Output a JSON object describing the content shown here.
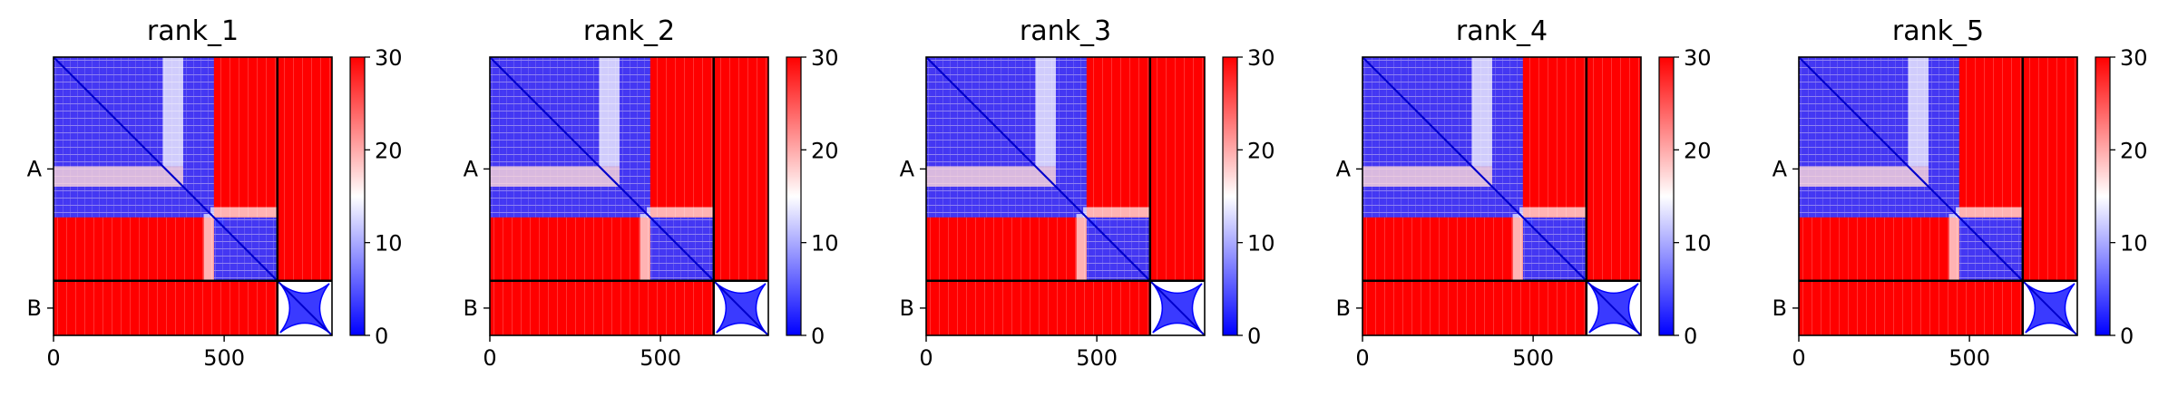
{
  "chart_data": [
    {
      "type": "heatmap",
      "title": "rank_1",
      "xlabel": "",
      "ylabel": "",
      "x_ticks": [
        0,
        500
      ],
      "x_tick_labels": [
        "0",
        "500"
      ],
      "y_ticks": [
        "A",
        "B"
      ],
      "xlim": [
        0,
        816
      ],
      "ylim": [
        816,
        0
      ],
      "chain_boundaries": [
        {
          "chain": "A",
          "start": 0,
          "end": 656
        },
        {
          "chain": "B",
          "start": 656,
          "end": 816
        }
      ],
      "colorbar": {
        "min": 0,
        "max": 30,
        "ticks": [
          "0",
          "10",
          "20",
          "30"
        ],
        "colormap": "bwr"
      },
      "grid": false
    },
    {
      "type": "heatmap",
      "title": "rank_2",
      "xlabel": "",
      "ylabel": "",
      "x_ticks": [
        0,
        500
      ],
      "x_tick_labels": [
        "0",
        "500"
      ],
      "y_ticks": [
        "A",
        "B"
      ],
      "xlim": [
        0,
        816
      ],
      "ylim": [
        816,
        0
      ],
      "chain_boundaries": [
        {
          "chain": "A",
          "start": 0,
          "end": 656
        },
        {
          "chain": "B",
          "start": 656,
          "end": 816
        }
      ],
      "colorbar": {
        "min": 0,
        "max": 30,
        "ticks": [
          "0",
          "10",
          "20",
          "30"
        ],
        "colormap": "bwr"
      },
      "grid": false
    },
    {
      "type": "heatmap",
      "title": "rank_3",
      "xlabel": "",
      "ylabel": "",
      "x_ticks": [
        0,
        500
      ],
      "x_tick_labels": [
        "0",
        "500"
      ],
      "y_ticks": [
        "A",
        "B"
      ],
      "xlim": [
        0,
        816
      ],
      "ylim": [
        816,
        0
      ],
      "chain_boundaries": [
        {
          "chain": "A",
          "start": 0,
          "end": 656
        },
        {
          "chain": "B",
          "start": 656,
          "end": 816
        }
      ],
      "colorbar": {
        "min": 0,
        "max": 30,
        "ticks": [
          "0",
          "10",
          "20",
          "30"
        ],
        "colormap": "bwr"
      },
      "grid": false
    },
    {
      "type": "heatmap",
      "title": "rank_4",
      "xlabel": "",
      "ylabel": "",
      "x_ticks": [
        0,
        500
      ],
      "x_tick_labels": [
        "0",
        "500"
      ],
      "y_ticks": [
        "A",
        "B"
      ],
      "xlim": [
        0,
        816
      ],
      "ylim": [
        816,
        0
      ],
      "chain_boundaries": [
        {
          "chain": "A",
          "start": 0,
          "end": 656
        },
        {
          "chain": "B",
          "start": 656,
          "end": 816
        }
      ],
      "colorbar": {
        "min": 0,
        "max": 30,
        "ticks": [
          "0",
          "10",
          "20",
          "30"
        ],
        "colormap": "bwr"
      },
      "grid": false
    },
    {
      "type": "heatmap",
      "title": "rank_5",
      "xlabel": "",
      "ylabel": "",
      "x_ticks": [
        0,
        500
      ],
      "x_tick_labels": [
        "0",
        "500"
      ],
      "y_ticks": [
        "A",
        "B"
      ],
      "xlim": [
        0,
        816
      ],
      "ylim": [
        816,
        0
      ],
      "chain_boundaries": [
        {
          "chain": "A",
          "start": 0,
          "end": 656
        },
        {
          "chain": "B",
          "start": 656,
          "end": 816
        }
      ],
      "colorbar": {
        "min": 0,
        "max": 30,
        "ticks": [
          "0",
          "10",
          "20",
          "30"
        ],
        "colormap": "bwr"
      },
      "grid": false
    }
  ],
  "colors": {
    "low": "#0000ff",
    "mid": "#ffffff",
    "high": "#ff0000",
    "boundary_lines": "#000000"
  }
}
